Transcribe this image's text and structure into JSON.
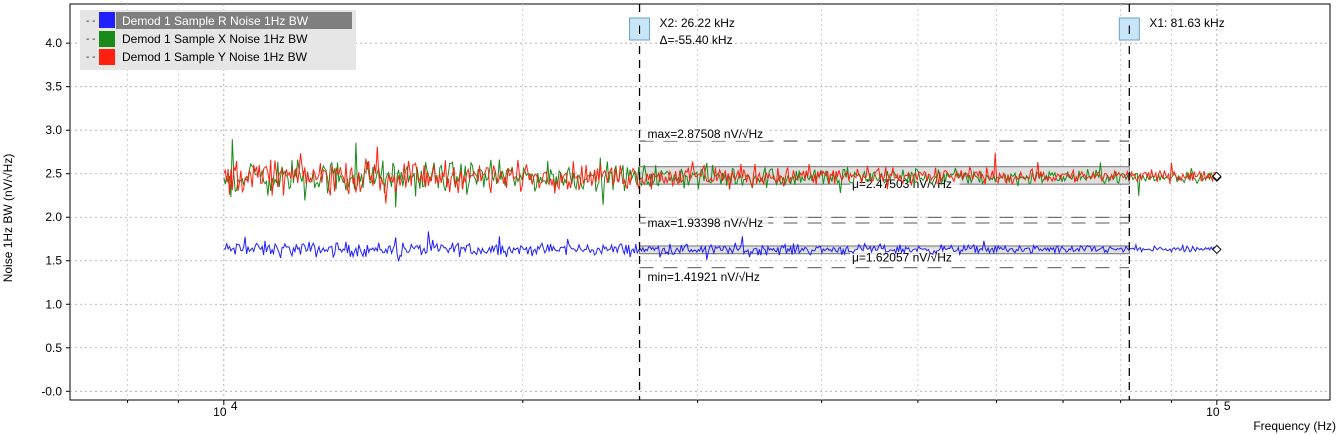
{
  "colors": {
    "R": "#2020ff",
    "X": "#1a8a1a",
    "Y": "#ff2010",
    "legend_selected_bg": "#7f7f7f",
    "legend_bg": "#e6e6e6",
    "marker_fill": "#c8e6f8",
    "marker_stroke": "#6aa0c8"
  },
  "chart_data": {
    "type": "line",
    "xscale": "log",
    "xlim": [
      7000,
      130000
    ],
    "ylim": [
      -0.1,
      4.45
    ],
    "xlabel": "Frequency (Hz)",
    "ylabel": "Noise 1Hz BW (nV/√Hz)",
    "x_ticks": [
      {
        "value": 10000,
        "base": "10",
        "exp": "4"
      },
      {
        "value": 100000,
        "base": "10",
        "exp": "5"
      }
    ],
    "y_ticks": [
      "4.0",
      "3.5",
      "3.0",
      "2.5",
      "2.0",
      "1.5",
      "1.0",
      "0.5",
      "-0.0"
    ],
    "y_tick_values": [
      4.0,
      3.5,
      3.0,
      2.5,
      2.0,
      1.5,
      1.0,
      0.5,
      0.0
    ],
    "grid": true,
    "legend_position": "top-left",
    "series": [
      {
        "name": "Demod 1 Sample R Noise 1Hz BW",
        "key": "R",
        "x_range": [
          10000,
          100000
        ],
        "level": 1.63,
        "spread": 0.085,
        "spread_end": 0.035,
        "selected": true
      },
      {
        "name": "Demod 1 Sample X Noise 1Hz BW",
        "key": "X",
        "x_range": [
          10000,
          100000
        ],
        "level": 2.46,
        "spread": 0.19,
        "spread_end": 0.055,
        "selected": false
      },
      {
        "name": "Demod 1 Sample Y Noise 1Hz BW",
        "key": "Y",
        "x_range": [
          10000,
          100000
        ],
        "level": 2.47,
        "spread": 0.19,
        "spread_end": 0.055,
        "selected": false
      }
    ],
    "cursors": [
      {
        "id": "X2",
        "x": 26220,
        "label": "X2: 26.22 kHz",
        "delta": "Δ=-55.40 kHz",
        "badge": "I"
      },
      {
        "id": "X1",
        "x": 81630,
        "label": "X1: 81.63 kHz",
        "badge": "I"
      }
    ],
    "stats": {
      "xy_max": 2.87508,
      "xy_mean": 2.47503,
      "xy_min": 2.0,
      "r_max": 1.93398,
      "r_mean": 1.62057,
      "r_min": 1.41921,
      "xy_band": [
        2.38,
        2.58
      ],
      "r_band": [
        1.58,
        1.67
      ],
      "xy_max_label": "max=2.87508 nV/√Hz",
      "xy_mean_label": "μ=2.47503 nV/√Hz",
      "r_max_label": "max=1.93398 nV/√Hz",
      "r_mean_label": "μ=1.62057 nV/√Hz",
      "r_min_label": "min=1.41921 nV/√Hz"
    }
  }
}
